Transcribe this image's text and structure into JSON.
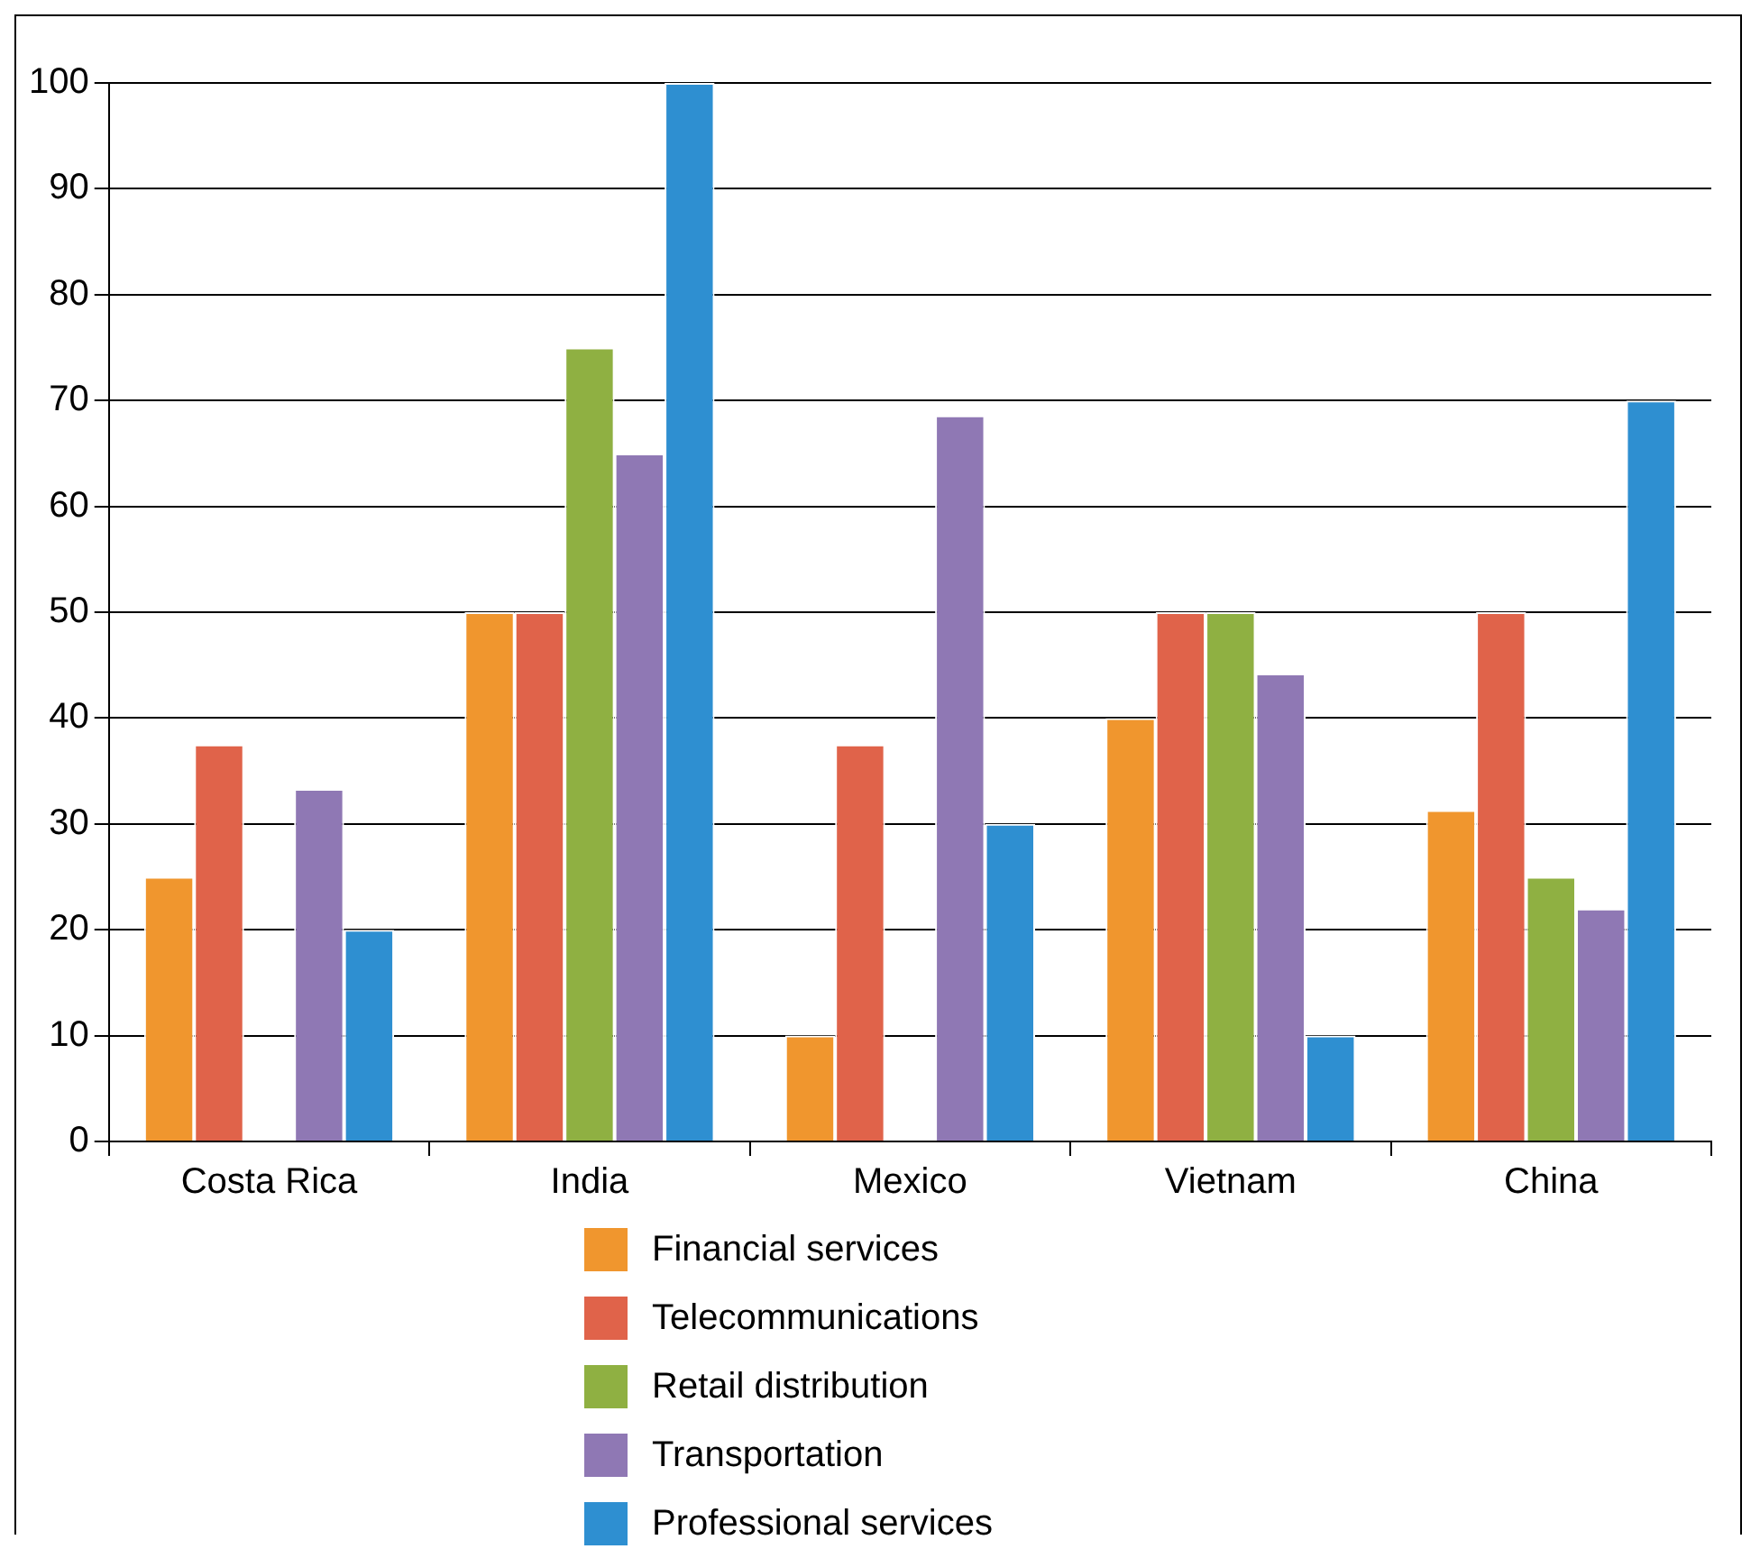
{
  "chart_data": {
    "type": "bar",
    "categories": [
      "Costa Rica",
      "India",
      "Mexico",
      "Vietnam",
      "China"
    ],
    "series": [
      {
        "name": "Financial services",
        "color": "#f0962e",
        "values": [
          25,
          50,
          10,
          40,
          31.3
        ]
      },
      {
        "name": "Telecommunications",
        "color": "#e0634a",
        "values": [
          37.5,
          50,
          37.5,
          50,
          50
        ]
      },
      {
        "name": "Retail distribution",
        "color": "#8fb042",
        "values": [
          0,
          75,
          0,
          50,
          25
        ]
      },
      {
        "name": "Transportation",
        "color": "#8f78b4",
        "values": [
          33.3,
          65,
          68.6,
          44.2,
          22
        ]
      },
      {
        "name": "Professional services",
        "color": "#2e8fd1",
        "values": [
          20,
          100,
          30,
          10,
          70
        ]
      }
    ],
    "ylim": [
      0,
      100
    ],
    "yticks": [
      0,
      10,
      20,
      30,
      40,
      50,
      60,
      70,
      80,
      90,
      100
    ],
    "grid": "y",
    "legend": "bottom"
  }
}
